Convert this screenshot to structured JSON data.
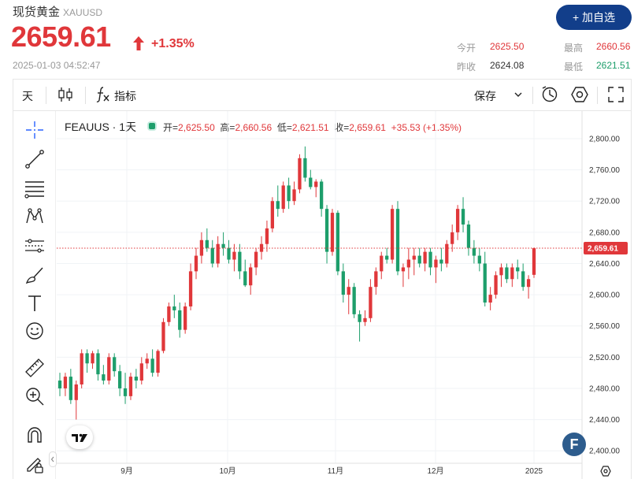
{
  "header": {
    "name": "现货黄金",
    "code": "XAUUSD",
    "price": "2659.61",
    "change": "+1.35%",
    "time": "2025-01-03 04:52:47",
    "add_label": "+ 加自选",
    "stats": {
      "open_label": "今开",
      "open_value": "2625.50",
      "prev_label": "昨收",
      "prev_value": "2624.08",
      "high_label": "最高",
      "high_value": "2660.56",
      "low_label": "最低",
      "low_value": "2621.51"
    }
  },
  "toolbar": {
    "interval": "天",
    "indicators": "指标",
    "save": "保存"
  },
  "legend": {
    "symbol": "FEAUUS · 1天",
    "open_label": "开=",
    "open": "2,625.50",
    "high_label": "高=",
    "high": "2,660.56",
    "low_label": "低=",
    "low": "2,621.51",
    "close_label": "收=",
    "close": "2,659.61",
    "change": "+35.53 (+1.35%)"
  },
  "colors": {
    "up": "#e0373a",
    "down": "#1d9e6b",
    "accent": "#123e8a"
  },
  "icons": [
    "crosshair-icon",
    "trend-line-icon",
    "fib-icon",
    "pattern-icon",
    "prediction-icon",
    "brush-icon",
    "text-icon",
    "emoji-icon",
    "ruler-icon",
    "zoom-in-icon",
    "magnet-icon",
    "lock-pencil-icon",
    "candles-icon",
    "fx-icon",
    "dropdown-icon",
    "alert-icon",
    "settings-icon",
    "fullscreen-icon"
  ],
  "chart_data": {
    "type": "candlestick",
    "y_ticks": [
      "2,800.00",
      "2,760.00",
      "2,720.00",
      "2,680.00",
      "2,640.00",
      "2,600.00",
      "2,560.00",
      "2,520.00",
      "2,480.00",
      "2,440.00",
      "2,400.00"
    ],
    "x_ticks": [
      "9月",
      "10月",
      "11月",
      "12月",
      "2025"
    ],
    "ylim": [
      2392,
      2832
    ],
    "last_price_label": "2,659.61",
    "last_price": 2659.61,
    "candles": [
      [
        2490,
        2500,
        2470,
        2480
      ],
      [
        2480,
        2500,
        2470,
        2495
      ],
      [
        2495,
        2505,
        2460,
        2465
      ],
      [
        2465,
        2490,
        2440,
        2485
      ],
      [
        2485,
        2530,
        2480,
        2525
      ],
      [
        2525,
        2530,
        2500,
        2512
      ],
      [
        2512,
        2528,
        2505,
        2525
      ],
      [
        2525,
        2530,
        2490,
        2498
      ],
      [
        2498,
        2510,
        2485,
        2490
      ],
      [
        2490,
        2525,
        2485,
        2520
      ],
      [
        2520,
        2525,
        2495,
        2502
      ],
      [
        2502,
        2510,
        2470,
        2480
      ],
      [
        2480,
        2500,
        2460,
        2470
      ],
      [
        2470,
        2500,
        2465,
        2495
      ],
      [
        2495,
        2505,
        2480,
        2490
      ],
      [
        2490,
        2520,
        2485,
        2512
      ],
      [
        2512,
        2525,
        2505,
        2518
      ],
      [
        2518,
        2530,
        2495,
        2500
      ],
      [
        2500,
        2530,
        2495,
        2528
      ],
      [
        2528,
        2570,
        2525,
        2565
      ],
      [
        2565,
        2590,
        2560,
        2585
      ],
      [
        2585,
        2600,
        2570,
        2580
      ],
      [
        2580,
        2590,
        2545,
        2555
      ],
      [
        2555,
        2590,
        2550,
        2585
      ],
      [
        2585,
        2640,
        2580,
        2630
      ],
      [
        2630,
        2660,
        2620,
        2650
      ],
      [
        2650,
        2680,
        2640,
        2670
      ],
      [
        2670,
        2685,
        2655,
        2660
      ],
      [
        2660,
        2670,
        2635,
        2640
      ],
      [
        2640,
        2675,
        2635,
        2665
      ],
      [
        2665,
        2680,
        2650,
        2660
      ],
      [
        2660,
        2670,
        2640,
        2645
      ],
      [
        2645,
        2665,
        2630,
        2655
      ],
      [
        2655,
        2665,
        2620,
        2630
      ],
      [
        2630,
        2645,
        2610,
        2612
      ],
      [
        2612,
        2640,
        2600,
        2635
      ],
      [
        2635,
        2660,
        2625,
        2655
      ],
      [
        2655,
        2675,
        2645,
        2665
      ],
      [
        2665,
        2695,
        2655,
        2685
      ],
      [
        2685,
        2725,
        2680,
        2720
      ],
      [
        2720,
        2740,
        2700,
        2710
      ],
      [
        2710,
        2745,
        2705,
        2740
      ],
      [
        2740,
        2750,
        2710,
        2720
      ],
      [
        2720,
        2745,
        2715,
        2735
      ],
      [
        2735,
        2780,
        2730,
        2775
      ],
      [
        2775,
        2790,
        2745,
        2750
      ],
      [
        2750,
        2760,
        2735,
        2738
      ],
      [
        2738,
        2748,
        2725,
        2745
      ],
      [
        2745,
        2748,
        2700,
        2710
      ],
      [
        2710,
        2715,
        2640,
        2655
      ],
      [
        2655,
        2710,
        2650,
        2705
      ],
      [
        2705,
        2708,
        2625,
        2630
      ],
      [
        2630,
        2640,
        2590,
        2600
      ],
      [
        2600,
        2620,
        2575,
        2610
      ],
      [
        2610,
        2615,
        2570,
        2575
      ],
      [
        2575,
        2580,
        2540,
        2565
      ],
      [
        2565,
        2580,
        2560,
        2570
      ],
      [
        2570,
        2620,
        2565,
        2610
      ],
      [
        2610,
        2635,
        2600,
        2630
      ],
      [
        2630,
        2655,
        2620,
        2650
      ],
      [
        2650,
        2660,
        2640,
        2645
      ],
      [
        2645,
        2715,
        2640,
        2710
      ],
      [
        2710,
        2720,
        2625,
        2630
      ],
      [
        2630,
        2640,
        2610,
        2635
      ],
      [
        2635,
        2660,
        2620,
        2645
      ],
      [
        2645,
        2660,
        2625,
        2650
      ],
      [
        2650,
        2660,
        2635,
        2640
      ],
      [
        2640,
        2660,
        2630,
        2655
      ],
      [
        2655,
        2660,
        2625,
        2635
      ],
      [
        2635,
        2650,
        2615,
        2645
      ],
      [
        2645,
        2660,
        2630,
        2640
      ],
      [
        2640,
        2670,
        2635,
        2665
      ],
      [
        2665,
        2690,
        2655,
        2680
      ],
      [
        2680,
        2715,
        2670,
        2710
      ],
      [
        2710,
        2725,
        2680,
        2690
      ],
      [
        2690,
        2695,
        2650,
        2660
      ],
      [
        2660,
        2670,
        2640,
        2650
      ],
      [
        2650,
        2660,
        2630,
        2640
      ],
      [
        2640,
        2655,
        2585,
        2590
      ],
      [
        2590,
        2610,
        2580,
        2600
      ],
      [
        2600,
        2630,
        2595,
        2625
      ],
      [
        2625,
        2640,
        2610,
        2635
      ],
      [
        2635,
        2640,
        2615,
        2620
      ],
      [
        2620,
        2640,
        2610,
        2635
      ],
      [
        2635,
        2645,
        2620,
        2630
      ],
      [
        2630,
        2640,
        2605,
        2610
      ],
      [
        2610,
        2625,
        2595,
        2620
      ],
      [
        2625.5,
        2660.56,
        2621.51,
        2659.61
      ]
    ]
  }
}
